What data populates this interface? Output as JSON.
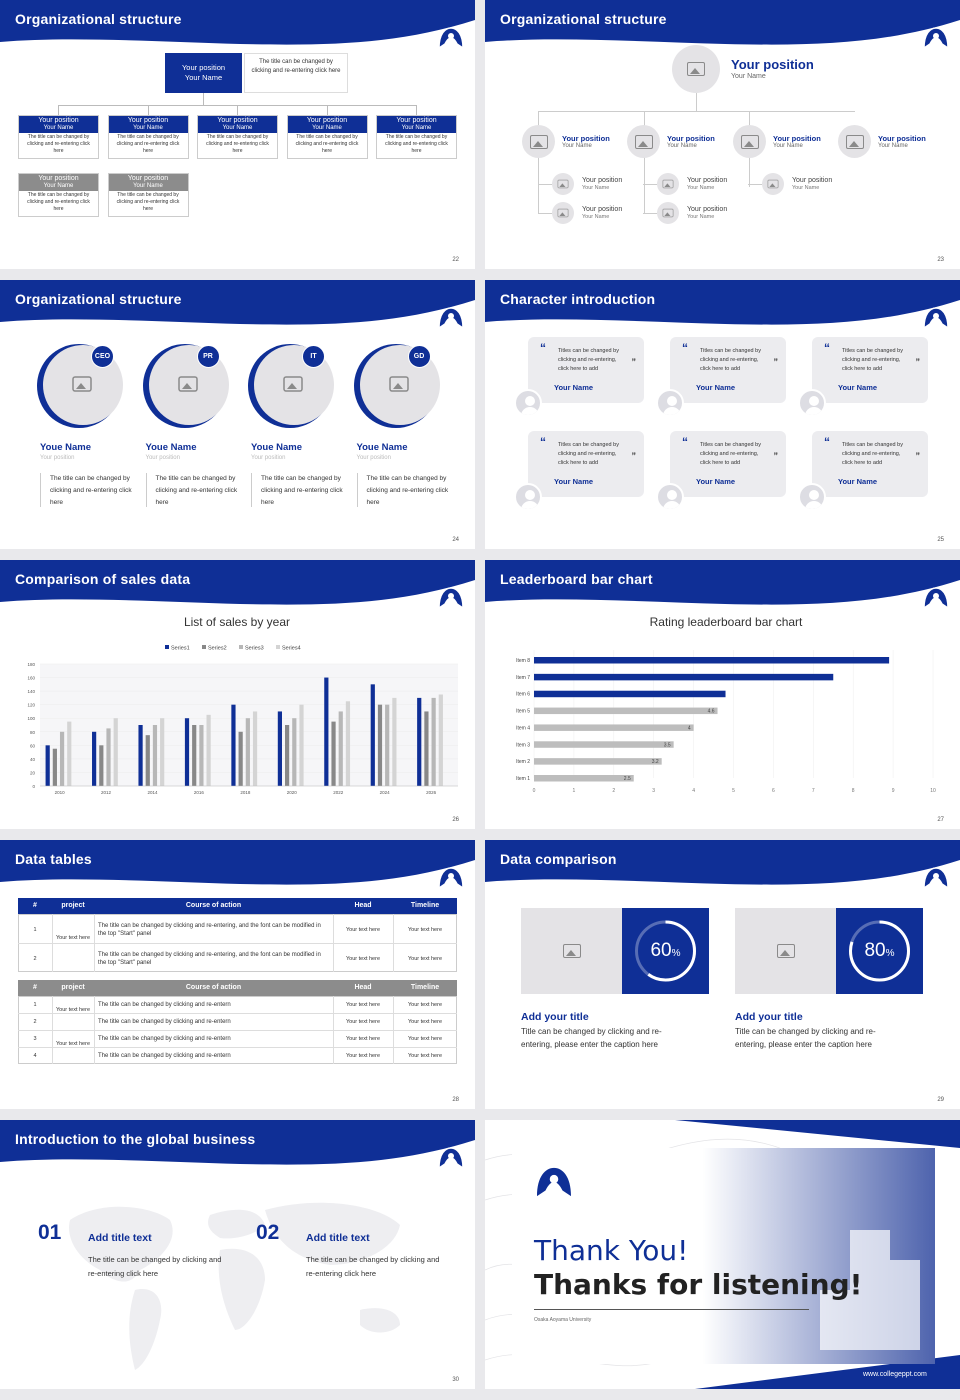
{
  "colors": {
    "brand": "#0f2f96",
    "gray": "#8c8c8c",
    "light": "#e4e3e6"
  },
  "s22": {
    "title": "Organizational structure",
    "page": "22",
    "top": {
      "label1": "Your position",
      "label2": "Your Name",
      "desc": "The title can be changed by clicking and re-entering click here"
    },
    "boxes": [
      {
        "l1": "Your position",
        "l2": "Your Name",
        "d": "The title can be changed by clicking and re-entering click here"
      },
      {
        "l1": "Your position",
        "l2": "Your Name",
        "d": "The title can be changed by clicking and re-entering click here"
      },
      {
        "l1": "Your position",
        "l2": "Your Name",
        "d": "The title can be changed by clicking and re-entering click here"
      },
      {
        "l1": "Your position",
        "l2": "Your Name",
        "d": "The title can be changed by clicking and re-entering click here"
      },
      {
        "l1": "Your position",
        "l2": "Your Name",
        "d": "The title can be changed by clicking and re-entering click here"
      }
    ],
    "gray": [
      {
        "l1": "Your position",
        "l2": "Your Name",
        "d": "The title can be changed by clicking and re-entering click here"
      },
      {
        "l1": "Your position",
        "l2": "Your Name",
        "d": "The title can be changed by clicking and re-entering click here"
      }
    ]
  },
  "s23": {
    "title": "Organizational structure",
    "page": "23",
    "top_pos": "Your position",
    "top_name": "Your Name",
    "row": [
      {
        "p": "Your position",
        "n": "Your Name"
      },
      {
        "p": "Your position",
        "n": "Your Name"
      },
      {
        "p": "Your position",
        "n": "Your Name"
      },
      {
        "p": "Your position",
        "n": "Your Name"
      }
    ],
    "sub": [
      {
        "p": "Your position",
        "n": "Your Name"
      },
      {
        "p": "Your position",
        "n": "Your Name"
      },
      {
        "p": "Your position",
        "n": "Your Name"
      },
      {
        "p": "Your position",
        "n": "Your Name"
      },
      {
        "p": "Your position",
        "n": "Your Name"
      }
    ]
  },
  "s24": {
    "title": "Organizational structure",
    "page": "24",
    "people": [
      {
        "badge": "CEO",
        "name": "Youe Name",
        "pos": "Your position",
        "desc": "The title can be changed by clicking and re-entering click here"
      },
      {
        "badge": "PR",
        "name": "Youe Name",
        "pos": "Your position",
        "desc": "The title can be changed by clicking and re-entering click here"
      },
      {
        "badge": "IT",
        "name": "Youe Name",
        "pos": "Your position",
        "desc": "The title can be changed by clicking and re-entering click here"
      },
      {
        "badge": "GD",
        "name": "Youe Name",
        "pos": "Your position",
        "desc": "The title can be changed by clicking and re-entering click here"
      }
    ]
  },
  "s25": {
    "title": "Character introduction",
    "page": "25",
    "quote": "Titles can be changed by clicking and re-entering, click here to add",
    "name": "Your Name"
  },
  "s26": {
    "title": "Comparison of sales data",
    "page": "26"
  },
  "s27": {
    "title": "Leaderboard bar chart",
    "page": "27"
  },
  "s28": {
    "title": "Data tables",
    "page": "28",
    "t1": {
      "head": [
        "#",
        "project",
        "Course of action",
        "Head",
        "Timeline"
      ],
      "project": "Your text here",
      "rows": [
        {
          "n": "1",
          "c": "The title can be changed by clicking and re-entering, and the font can be modified in the top \"Start\" panel",
          "h": "Your text here",
          "t": "Your text here"
        },
        {
          "n": "2",
          "c": "The title can be changed by clicking and re-entering, and the font can be modified in the top \"Start\" panel",
          "h": "Your text here",
          "t": "Your text here"
        }
      ]
    },
    "t2": {
      "head": [
        "#",
        "project",
        "Course of action",
        "Head",
        "Timeline"
      ],
      "project1": "Your text here",
      "project2": "Your text here",
      "rows": [
        {
          "n": "1",
          "c": "The title can be changed by clicking and re-entern",
          "h": "Your text here",
          "t": "Your text here"
        },
        {
          "n": "2",
          "c": "The title can be changed by clicking and re-entern",
          "h": "Your text here",
          "t": "Your text here"
        },
        {
          "n": "3",
          "c": "The title can be changed by clicking and re-entern",
          "h": "Your text here",
          "t": "Your text here"
        },
        {
          "n": "4",
          "c": "The title can be changed by clicking and re-entern",
          "h": "Your text here",
          "t": "Your text here"
        }
      ]
    }
  },
  "s29": {
    "title": "Data comparison",
    "page": "29",
    "items": [
      {
        "pct": "60",
        "unit": "%",
        "value": 0.6,
        "title": "Add your title",
        "desc": "Title can be changed by clicking and re-entering, please enter the caption here"
      },
      {
        "pct": "80",
        "unit": "%",
        "value": 0.8,
        "title": "Add your title",
        "desc": "Title can be changed by clicking and re-entering, please enter the caption here"
      }
    ]
  },
  "s30": {
    "title": "Introduction to the global business",
    "page": "30",
    "items": [
      {
        "num": "01",
        "title": "Add title text",
        "desc": "The title can be changed by clicking and re-entering click here"
      },
      {
        "num": "02",
        "title": "Add title text",
        "desc": "The title can be changed by clicking and re-entering click here"
      }
    ]
  },
  "s31": {
    "line1": "Thank You!",
    "line2": "Thanks for listening!",
    "university": "Osaka Aoyama University",
    "url": "www.collegeppt.com"
  },
  "chart_data": [
    {
      "type": "bar",
      "title": "List of sales by year",
      "categories": [
        "2010",
        "2012",
        "2014",
        "2016",
        "2018",
        "2020",
        "2022",
        "2024",
        "2026"
      ],
      "ylim": [
        0,
        180
      ],
      "yticks": [
        0,
        20,
        40,
        60,
        80,
        100,
        120,
        140,
        160,
        180
      ],
      "series": [
        {
          "name": "Series1",
          "values": [
            60,
            80,
            90,
            100,
            120,
            110,
            160,
            150,
            130
          ]
        },
        {
          "name": "Series2",
          "values": [
            55,
            60,
            75,
            90,
            80,
            90,
            95,
            120,
            110
          ]
        },
        {
          "name": "Series3",
          "values": [
            80,
            85,
            90,
            90,
            100,
            100,
            110,
            120,
            130
          ]
        },
        {
          "name": "Series4",
          "values": [
            95,
            100,
            100,
            105,
            110,
            120,
            125,
            130,
            135
          ]
        }
      ],
      "legend": "top"
    },
    {
      "type": "bar",
      "orientation": "horizontal",
      "title": "Rating leaderboard bar chart",
      "categories": [
        "Item 8",
        "Item 7",
        "Item 6",
        "Item 5",
        "Item 4",
        "Item 3",
        "Item 2",
        "Item 1"
      ],
      "values": [
        8.9,
        7.5,
        4.8,
        4.6,
        4,
        3.5,
        3.2,
        2.5
      ],
      "labels": [
        "",
        "",
        "",
        "4.6",
        "4",
        "3.5",
        "3.2",
        "2.5"
      ],
      "xlim": [
        0,
        10
      ],
      "xticks": [
        0,
        1,
        2,
        3,
        4,
        5,
        6,
        7,
        8,
        9,
        10
      ]
    }
  ]
}
